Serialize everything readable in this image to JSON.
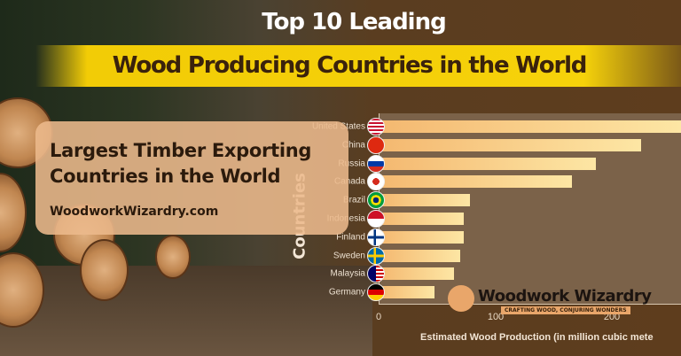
{
  "header": {
    "line1": "Top 10 Leading",
    "line2": "Wood Producing Countries in the World"
  },
  "card": {
    "title": "Largest Timber Exporting Countries in the World",
    "site": "WoodworkWizardry.com"
  },
  "logo": {
    "name": "Woodwork Wizardry",
    "tagline": "CRAFTING WOOD, CONJURING WONDERS"
  },
  "chart_data": {
    "type": "bar",
    "orientation": "horizontal",
    "categories": [
      "United States",
      "China",
      "Russia",
      "Canada",
      "Brazil",
      "Indonesia",
      "Finland",
      "Sweden",
      "Malaysia",
      "Germany"
    ],
    "values": [
      260,
      225,
      186,
      166,
      78,
      73,
      73,
      70,
      65,
      48
    ],
    "xlabel": "Estimated Wood Production (in million cubic mete",
    "ylabel": "Countries",
    "xticks": [
      "0",
      "100",
      "200"
    ],
    "xlim": [
      0,
      259
    ],
    "grid": false,
    "bar_color": "#f8d090",
    "flags": [
      "us-flag-icon",
      "china-flag-icon",
      "russia-flag-icon",
      "canada-flag-icon",
      "brazil-flag-icon",
      "indonesia-flag-icon",
      "finland-flag-icon",
      "sweden-flag-icon",
      "malaysia-flag-icon",
      "germany-flag-icon"
    ]
  }
}
